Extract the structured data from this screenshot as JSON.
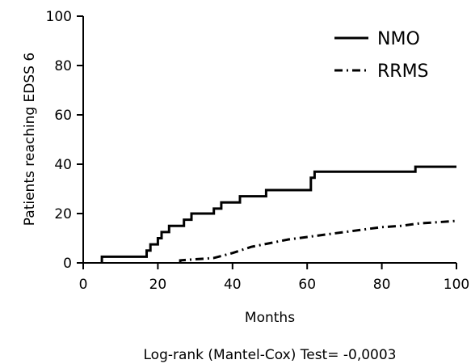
{
  "chart_data": {
    "type": "line",
    "title": "",
    "xlabel": "Months",
    "ylabel": "Patients reaching EDSS 6",
    "xlim": [
      0,
      100
    ],
    "ylim": [
      0,
      100
    ],
    "x_ticks": [
      0,
      20,
      40,
      60,
      80,
      100
    ],
    "y_ticks": [
      0,
      20,
      40,
      60,
      80,
      100
    ],
    "x_tick_labels": [
      "0",
      "20",
      "40",
      "60",
      "80",
      "100"
    ],
    "y_tick_labels": [
      "0",
      "20",
      "40",
      "60",
      "80",
      "100"
    ],
    "grid": false,
    "legend_position": "top-right",
    "series": [
      {
        "name": "NMO",
        "style": "solid",
        "color": "#000000",
        "points": [
          [
            5,
            0
          ],
          [
            5,
            2.5
          ],
          [
            17,
            2.5
          ],
          [
            17,
            5
          ],
          [
            18,
            5
          ],
          [
            18,
            7.5
          ],
          [
            20,
            7.5
          ],
          [
            20,
            10
          ],
          [
            21,
            10
          ],
          [
            21,
            12.5
          ],
          [
            23,
            12.5
          ],
          [
            23,
            15
          ],
          [
            27,
            15
          ],
          [
            27,
            17.5
          ],
          [
            29,
            17.5
          ],
          [
            29,
            20
          ],
          [
            35,
            20
          ],
          [
            35,
            22
          ],
          [
            37,
            22
          ],
          [
            37,
            24.5
          ],
          [
            42,
            24.5
          ],
          [
            42,
            27
          ],
          [
            49,
            27
          ],
          [
            49,
            29.5
          ],
          [
            61,
            29.5
          ],
          [
            61,
            34.5
          ],
          [
            62,
            34.5
          ],
          [
            62,
            37
          ],
          [
            89,
            37
          ],
          [
            89,
            39
          ],
          [
            100,
            39
          ]
        ]
      },
      {
        "name": "RRMS",
        "style": "dashdot",
        "color": "#000000",
        "points": [
          [
            26,
            0
          ],
          [
            26,
            1
          ],
          [
            35,
            2
          ],
          [
            40,
            4
          ],
          [
            45,
            6.5
          ],
          [
            50,
            8
          ],
          [
            55,
            9.5
          ],
          [
            60,
            10.5
          ],
          [
            65,
            11.5
          ],
          [
            70,
            12.5
          ],
          [
            75,
            13.5
          ],
          [
            80,
            14.5
          ],
          [
            85,
            15
          ],
          [
            90,
            16
          ],
          [
            95,
            16.5
          ],
          [
            100,
            17
          ]
        ]
      }
    ],
    "annotation": "Log-rank (Mantel-Cox) Test= -0,0003"
  }
}
